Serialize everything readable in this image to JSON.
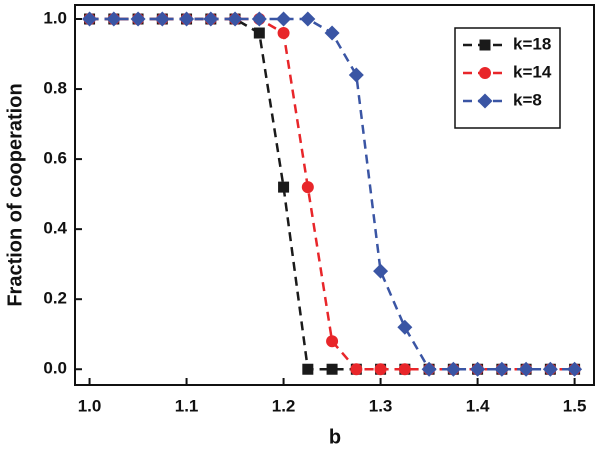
{
  "chart_data": {
    "type": "line",
    "x_label": "b",
    "y_label": "Fraction of cooperation",
    "x": [
      1.0,
      1.025,
      1.05,
      1.075,
      1.1,
      1.125,
      1.15,
      1.175,
      1.2,
      1.225,
      1.25,
      1.275,
      1.3,
      1.325,
      1.35,
      1.375,
      1.4,
      1.425,
      1.45,
      1.475,
      1.5
    ],
    "series": [
      {
        "name": "k=18",
        "color": "#1a1a1a",
        "marker": "square",
        "values": [
          1,
          1,
          1,
          1,
          1,
          1,
          1,
          0.96,
          0.52,
          0,
          0,
          0,
          0,
          0,
          0,
          0,
          0,
          0,
          0,
          0,
          0
        ]
      },
      {
        "name": "k=14",
        "color": "#e8262a",
        "marker": "circle",
        "values": [
          1,
          1,
          1,
          1,
          1,
          1,
          1,
          1,
          0.96,
          0.52,
          0.08,
          0,
          0,
          0,
          0,
          0,
          0,
          0,
          0,
          0,
          0
        ]
      },
      {
        "name": "k=8",
        "color": "#3a55a4",
        "marker": "diamond",
        "values": [
          1,
          1,
          1,
          1,
          1,
          1,
          1,
          1,
          1,
          1,
          0.96,
          0.84,
          0.28,
          0.12,
          0,
          0,
          0,
          0,
          0,
          0,
          0
        ]
      }
    ],
    "xlim": [
      0.985,
      1.52
    ],
    "ylim": [
      -0.045,
      1.04
    ],
    "xticks": [
      {
        "value": 1.0,
        "label": "1.0"
      },
      1.1,
      1.2,
      1.3,
      1.4,
      1.5
    ],
    "yticks": [
      {
        "value": 0,
        "label": "0.0"
      },
      0.2,
      0.4,
      0.6,
      0.8,
      {
        "value": 1.0,
        "label": "1.0"
      }
    ],
    "legend": "upper right"
  }
}
